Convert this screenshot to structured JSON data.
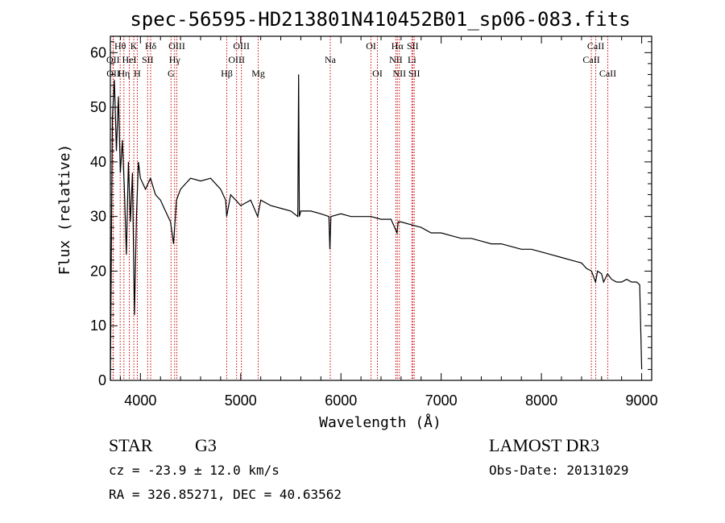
{
  "chart_data": {
    "type": "line",
    "title": "spec-56595-HD213801N410452B01_sp06-083.fits",
    "xlabel": "Wavelength (Å)",
    "ylabel": "Flux (relative)",
    "xlim": [
      3700,
      9100
    ],
    "ylim": [
      0,
      63
    ],
    "xticks": [
      4000,
      5000,
      6000,
      7000,
      8000,
      9000
    ],
    "yticks": [
      0,
      10,
      20,
      30,
      40,
      50,
      60
    ],
    "grid": false,
    "series": [
      {
        "name": "flux",
        "x": [
          3700,
          3720,
          3740,
          3760,
          3780,
          3800,
          3820,
          3840,
          3860,
          3880,
          3900,
          3920,
          3940,
          3960,
          3980,
          4000,
          4050,
          4100,
          4150,
          4200,
          4250,
          4300,
          4330,
          4360,
          4400,
          4450,
          4500,
          4600,
          4700,
          4800,
          4850,
          4860,
          4900,
          4950,
          5000,
          5100,
          5170,
          5200,
          5300,
          5400,
          5500,
          5570,
          5578,
          5585,
          5600,
          5700,
          5800,
          5880,
          5890,
          5900,
          6000,
          6100,
          6200,
          6300,
          6400,
          6500,
          6560,
          6570,
          6600,
          6700,
          6800,
          6900,
          7000,
          7100,
          7200,
          7300,
          7400,
          7500,
          7600,
          7700,
          7800,
          7900,
          8000,
          8100,
          8200,
          8300,
          8400,
          8450,
          8500,
          8540,
          8560,
          8600,
          8620,
          8660,
          8700,
          8750,
          8800,
          8850,
          8900,
          8950,
          8980,
          8990,
          9000
        ],
        "y": [
          0,
          48,
          55,
          42,
          52,
          38,
          44,
          35,
          23,
          40,
          29,
          38,
          12,
          30,
          40,
          37,
          35,
          37,
          34,
          33,
          31,
          29,
          25,
          33,
          35,
          36,
          37,
          36.5,
          37,
          35,
          33,
          30,
          34,
          33,
          32,
          33,
          30,
          33,
          32,
          31.5,
          31,
          30,
          56,
          30,
          31,
          31,
          30.5,
          30,
          24,
          30,
          30.5,
          30,
          30,
          30,
          29.5,
          29.5,
          27,
          29,
          29,
          28.5,
          28,
          27,
          27,
          26.5,
          26,
          26,
          25.5,
          25,
          25,
          24.5,
          24,
          24,
          23.5,
          23,
          22.5,
          22,
          21.5,
          20.5,
          20,
          18,
          20,
          19.5,
          18,
          19.5,
          18.5,
          18,
          18,
          18.5,
          18,
          18,
          17.5,
          10,
          2
        ]
      }
    ],
    "spectral_lines": [
      {
        "label": "OII",
        "wavelength": 3727,
        "row": 2
      },
      {
        "label": "OII",
        "wavelength": 3729,
        "row": 3
      },
      {
        "label": "Hθ",
        "wavelength": 3798,
        "row": 1
      },
      {
        "label": "Hη",
        "wavelength": 3835,
        "row": 3
      },
      {
        "label": "HeI",
        "wavelength": 3889,
        "row": 2
      },
      {
        "label": "K",
        "wavelength": 3934,
        "row": 1
      },
      {
        "label": "H",
        "wavelength": 3969,
        "row": 3
      },
      {
        "label": "SII",
        "wavelength": 4072,
        "row": 2
      },
      {
        "label": "Hδ",
        "wavelength": 4102,
        "row": 1
      },
      {
        "label": "G",
        "wavelength": 4305,
        "row": 3
      },
      {
        "label": "Hγ",
        "wavelength": 4341,
        "row": 2
      },
      {
        "label": "OIII",
        "wavelength": 4363,
        "row": 1
      },
      {
        "label": "Hβ",
        "wavelength": 4861,
        "row": 3
      },
      {
        "label": "OIII",
        "wavelength": 4959,
        "row": 2
      },
      {
        "label": "OIII",
        "wavelength": 5007,
        "row": 1
      },
      {
        "label": "Mg",
        "wavelength": 5175,
        "row": 3
      },
      {
        "label": "Na",
        "wavelength": 5894,
        "row": 2
      },
      {
        "label": "OI",
        "wavelength": 6300,
        "row": 1
      },
      {
        "label": "OI",
        "wavelength": 6364,
        "row": 3
      },
      {
        "label": "NII",
        "wavelength": 6548,
        "row": 2
      },
      {
        "label": "Hα",
        "wavelength": 6563,
        "row": 1
      },
      {
        "label": "NII",
        "wavelength": 6583,
        "row": 3
      },
      {
        "label": "Li",
        "wavelength": 6708,
        "row": 2
      },
      {
        "label": "SII",
        "wavelength": 6716,
        "row": 1
      },
      {
        "label": "SII",
        "wavelength": 6731,
        "row": 3
      },
      {
        "label": "CaII",
        "wavelength": 8498,
        "row": 2
      },
      {
        "label": "CaII",
        "wavelength": 8542,
        "row": 1
      },
      {
        "label": "CaII",
        "wavelength": 8662,
        "row": 3
      }
    ],
    "line_color": "#cc0000"
  },
  "info": {
    "object_class": "STAR",
    "subclass": "G3",
    "survey": "LAMOST DR3",
    "redshift": "cz = -23.9 ± 12.0 km/s",
    "obs_date": "Obs-Date: 20131029",
    "coords": "RA = 326.85271, DEC =  40.63562"
  }
}
